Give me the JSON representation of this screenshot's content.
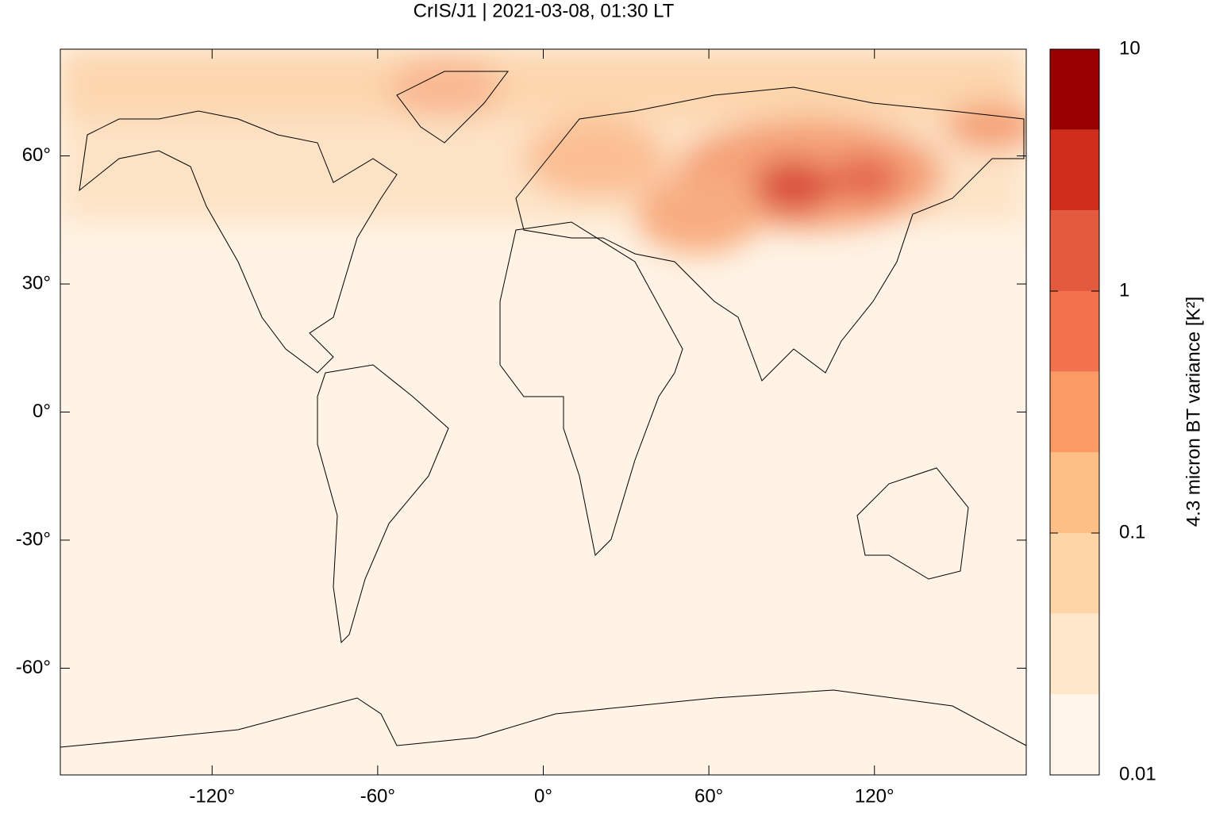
{
  "chart_data": {
    "type": "map",
    "title": "CrIS/J1 | 2021-03-08, 01:30 LT",
    "xlim": [
      -175,
      175
    ],
    "ylim": [
      -85,
      85
    ],
    "xticks": [
      {
        "value": -120,
        "label": "-120°"
      },
      {
        "value": -60,
        "label": "-60°"
      },
      {
        "value": 0,
        "label": "0°"
      },
      {
        "value": 60,
        "label": "60°"
      },
      {
        "value": 120,
        "label": "120°"
      }
    ],
    "yticks": [
      {
        "value": -60,
        "label": "-60°"
      },
      {
        "value": -30,
        "label": "-30°"
      },
      {
        "value": 0,
        "label": "0°"
      },
      {
        "value": 30,
        "label": "30°"
      },
      {
        "value": 60,
        "label": "60°"
      }
    ],
    "colorbar": {
      "label": "4.3 micron BT variance [K²]",
      "log": true,
      "lim": [
        0.01,
        10
      ],
      "ticks": [
        0.01,
        0.1,
        1,
        10
      ],
      "colors": [
        "#fff5eb",
        "#fde8cc",
        "#fdd5a6",
        "#fdbf86",
        "#fb9b64",
        "#f2724e",
        "#e35a3f",
        "#cf2e1d",
        "#990000"
      ]
    }
  }
}
